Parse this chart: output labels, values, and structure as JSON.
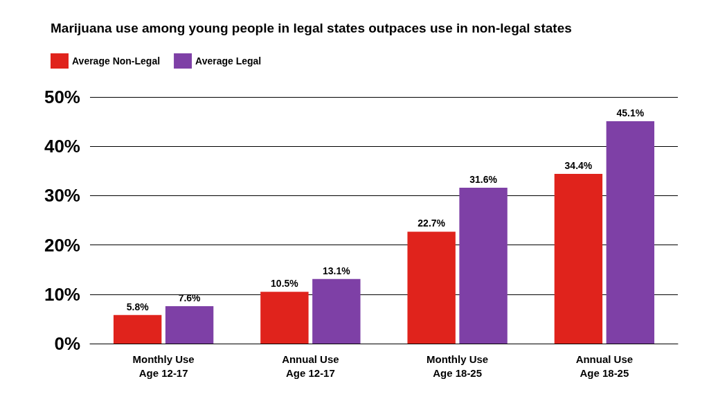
{
  "chart_data": {
    "type": "bar",
    "title": "Marijuana use among young people in legal states outpaces use in non-legal states",
    "categories": [
      "Monthly Use\nAge 12-17",
      "Annual Use\nAge 12-17",
      "Monthly Use\nAge 18-25",
      "Annual Use\nAge 18-25"
    ],
    "series": [
      {
        "name": "Average Non-Legal",
        "color": "#e0231c",
        "values": [
          5.8,
          10.5,
          22.7,
          34.4
        ],
        "value_labels": [
          "5.8%",
          "10.5%",
          "22.7%",
          "34.4%"
        ]
      },
      {
        "name": "Average Legal",
        "color": "#7e40a6",
        "values": [
          7.6,
          13.1,
          31.6,
          45.1
        ],
        "value_labels": [
          "7.6%",
          "13.1%",
          "31.6%",
          "45.1%"
        ]
      }
    ],
    "ylim": [
      0,
      50
    ],
    "yticks": [
      {
        "value": 0,
        "label": "0%"
      },
      {
        "value": 10,
        "label": "10%"
      },
      {
        "value": 20,
        "label": "20%"
      },
      {
        "value": 30,
        "label": "30%"
      },
      {
        "value": 40,
        "label": "40%"
      },
      {
        "value": 50,
        "label": "50%"
      }
    ],
    "grid": "y",
    "legend": "top left"
  }
}
